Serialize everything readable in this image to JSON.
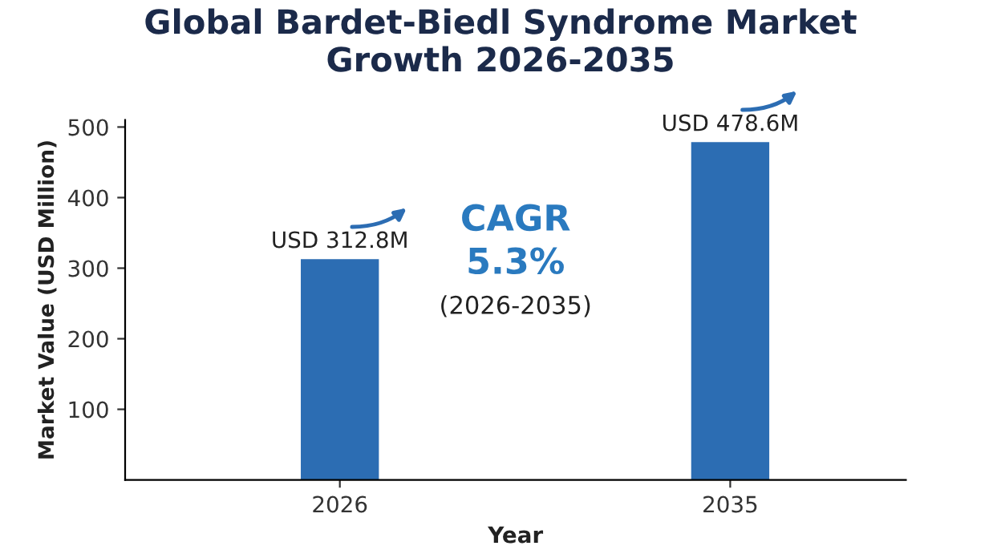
{
  "chart_data": {
    "type": "bar",
    "title": "Global Bardet-Biedl Syndrome Market\nGrowth 2026-2035",
    "xlabel": "Year",
    "ylabel": "Market Value (USD Million)",
    "categories": [
      "2026",
      "2035"
    ],
    "values": [
      312.8,
      478.6
    ],
    "value_labels": [
      "USD 312.8M",
      "USD 478.6M"
    ],
    "color": "#2c6db3",
    "ylim": [
      0,
      510
    ],
    "yticks": [
      100,
      200,
      300,
      400,
      500
    ],
    "grid": false,
    "legend": false,
    "annotations": [
      "CAGR",
      "5.3%",
      "(2026-2035)"
    ]
  }
}
